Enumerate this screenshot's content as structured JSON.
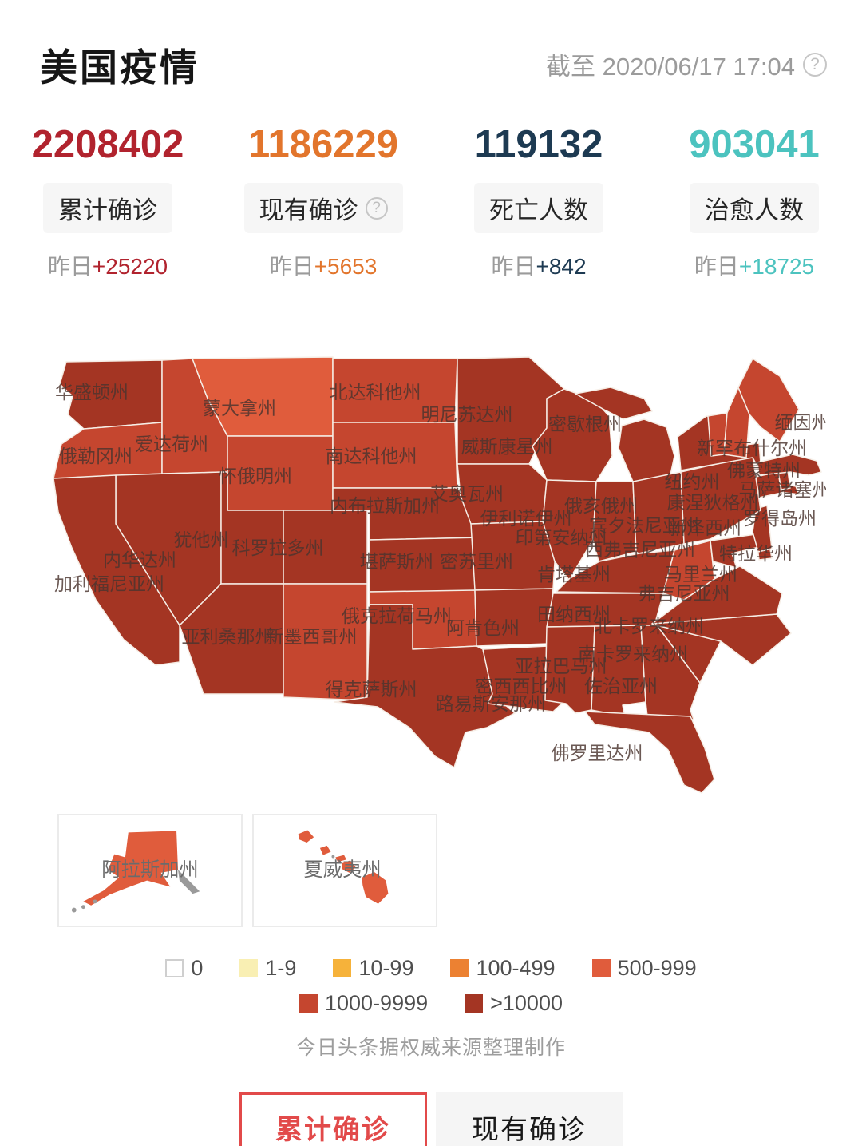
{
  "header": {
    "title": "美国疫情",
    "as_of": "截至 2020/06/17 17:04"
  },
  "stats": [
    {
      "value": "2208402",
      "label": "累计确诊",
      "delta_prefix": "昨日",
      "delta": "+25220",
      "color": "#b1232e",
      "has_help": false
    },
    {
      "value": "1186229",
      "label": "现有确诊",
      "delta_prefix": "昨日",
      "delta": "+5653",
      "color": "#e2752c",
      "has_help": true
    },
    {
      "value": "119132",
      "label": "死亡人数",
      "delta_prefix": "昨日",
      "delta": "+842",
      "color": "#1d3a52",
      "has_help": false
    },
    {
      "value": "903041",
      "label": "治愈人数",
      "delta_prefix": "昨日",
      "delta": "+18725",
      "color": "#4cc3bf",
      "has_help": false
    }
  ],
  "legend": {
    "items": [
      {
        "label": "0",
        "color": "#ffffff"
      },
      {
        "label": "1-9",
        "color": "#f9efb3"
      },
      {
        "label": "10-99",
        "color": "#f6b23a"
      },
      {
        "label": "100-499",
        "color": "#ec8132"
      },
      {
        "label": "500-999",
        "color": "#e05c3c"
      },
      {
        "label": "1000-9999",
        "color": "#c5462f"
      },
      {
        "label": ">10000",
        "color": "#a43523"
      }
    ],
    "rows": [
      [
        0,
        1,
        2,
        3,
        4
      ],
      [
        5,
        6
      ]
    ]
  },
  "map": {
    "states": {
      "washington": {
        "label": "华盛顿州",
        "level": 6
      },
      "oregon": {
        "label": "俄勒冈州",
        "level": 5
      },
      "idaho": {
        "label": "爱达荷州",
        "level": 5
      },
      "montana": {
        "label": "蒙大拿州",
        "level": 4
      },
      "wyoming": {
        "label": "怀俄明州",
        "level": 5
      },
      "nevada": {
        "label": "内华达州",
        "level": 6
      },
      "utah": {
        "label": "犹他州",
        "level": 6
      },
      "colorado": {
        "label": "科罗拉多州",
        "level": 6
      },
      "california": {
        "label": "加利福尼亚州",
        "level": 6
      },
      "arizona": {
        "label": "亚利桑那州",
        "level": 6
      },
      "new-mexico": {
        "label": "新墨西哥州",
        "level": 5
      },
      "north-dakota": {
        "label": "北达科他州",
        "level": 5
      },
      "south-dakota": {
        "label": "南达科他州",
        "level": 5
      },
      "nebraska": {
        "label": "内布拉斯加州",
        "level": 6
      },
      "kansas": {
        "label": "堪萨斯州",
        "level": 6
      },
      "oklahoma": {
        "label": "俄克拉荷马州",
        "level": 5
      },
      "texas": {
        "label": "得克萨斯州",
        "level": 6
      },
      "minnesota": {
        "label": "明尼苏达州",
        "level": 6
      },
      "iowa": {
        "label": "艾奥瓦州",
        "level": 6
      },
      "missouri": {
        "label": "密苏里州",
        "level": 6
      },
      "arkansas": {
        "label": "阿肯色州",
        "level": 6
      },
      "louisiana": {
        "label": "路易斯安那州",
        "level": 6
      },
      "wisconsin": {
        "label": "威斯康星州",
        "level": 6
      },
      "illinois": {
        "label": "伊利诺伊州",
        "level": 6
      },
      "michigan": {
        "label": "密歇根州",
        "level": 6
      },
      "indiana": {
        "label": "印第安纳州",
        "level": 6
      },
      "ohio": {
        "label": "俄亥俄州",
        "level": 6
      },
      "kentucky": {
        "label": "肯塔基州",
        "level": 6
      },
      "tennessee": {
        "label": "田纳西州",
        "level": 6
      },
      "mississippi": {
        "label": "密西西比州",
        "level": 6
      },
      "alabama": {
        "label": "亚拉巴马州",
        "level": 6
      },
      "georgia": {
        "label": "佐治亚州",
        "level": 6
      },
      "florida": {
        "label": "佛罗里达州",
        "level": 6
      },
      "south-carolina": {
        "label": "南卡罗来纳州",
        "level": 6
      },
      "north-carolina": {
        "label": "北卡罗来纳州",
        "level": 6
      },
      "virginia": {
        "label": "弗吉尼亚州",
        "level": 6
      },
      "west-virginia": {
        "label": "西弗吉尼亚州",
        "level": 5
      },
      "maryland": {
        "label": "马里兰州",
        "level": 6
      },
      "delaware": {
        "label": "特拉华州",
        "level": 6
      },
      "new-jersey": {
        "label": "新泽西州",
        "level": 6
      },
      "pennsylvania": {
        "label": "宾夕法尼亚州",
        "level": 6
      },
      "new-york": {
        "label": "纽约州",
        "level": 6
      },
      "connecticut": {
        "label": "康涅狄格州",
        "level": 6
      },
      "rhode-island": {
        "label": "罗得岛州",
        "level": 6
      },
      "massachusetts": {
        "label": "马萨诸塞州",
        "level": 6
      },
      "vermont": {
        "label": "佛蒙特州",
        "level": 5
      },
      "new-hampshire": {
        "label": "新罕布什尔州",
        "level": 5
      },
      "maine": {
        "label": "缅因州",
        "level": 5
      }
    },
    "insets": [
      {
        "label": "阿拉斯加州",
        "level": 4
      },
      {
        "label": "夏威夷州",
        "level": 4
      }
    ]
  },
  "attribution": "今日头条据权威来源整理制作",
  "tabs": [
    {
      "label": "累计确诊",
      "active": true
    },
    {
      "label": "现有确诊",
      "active": false
    }
  ]
}
